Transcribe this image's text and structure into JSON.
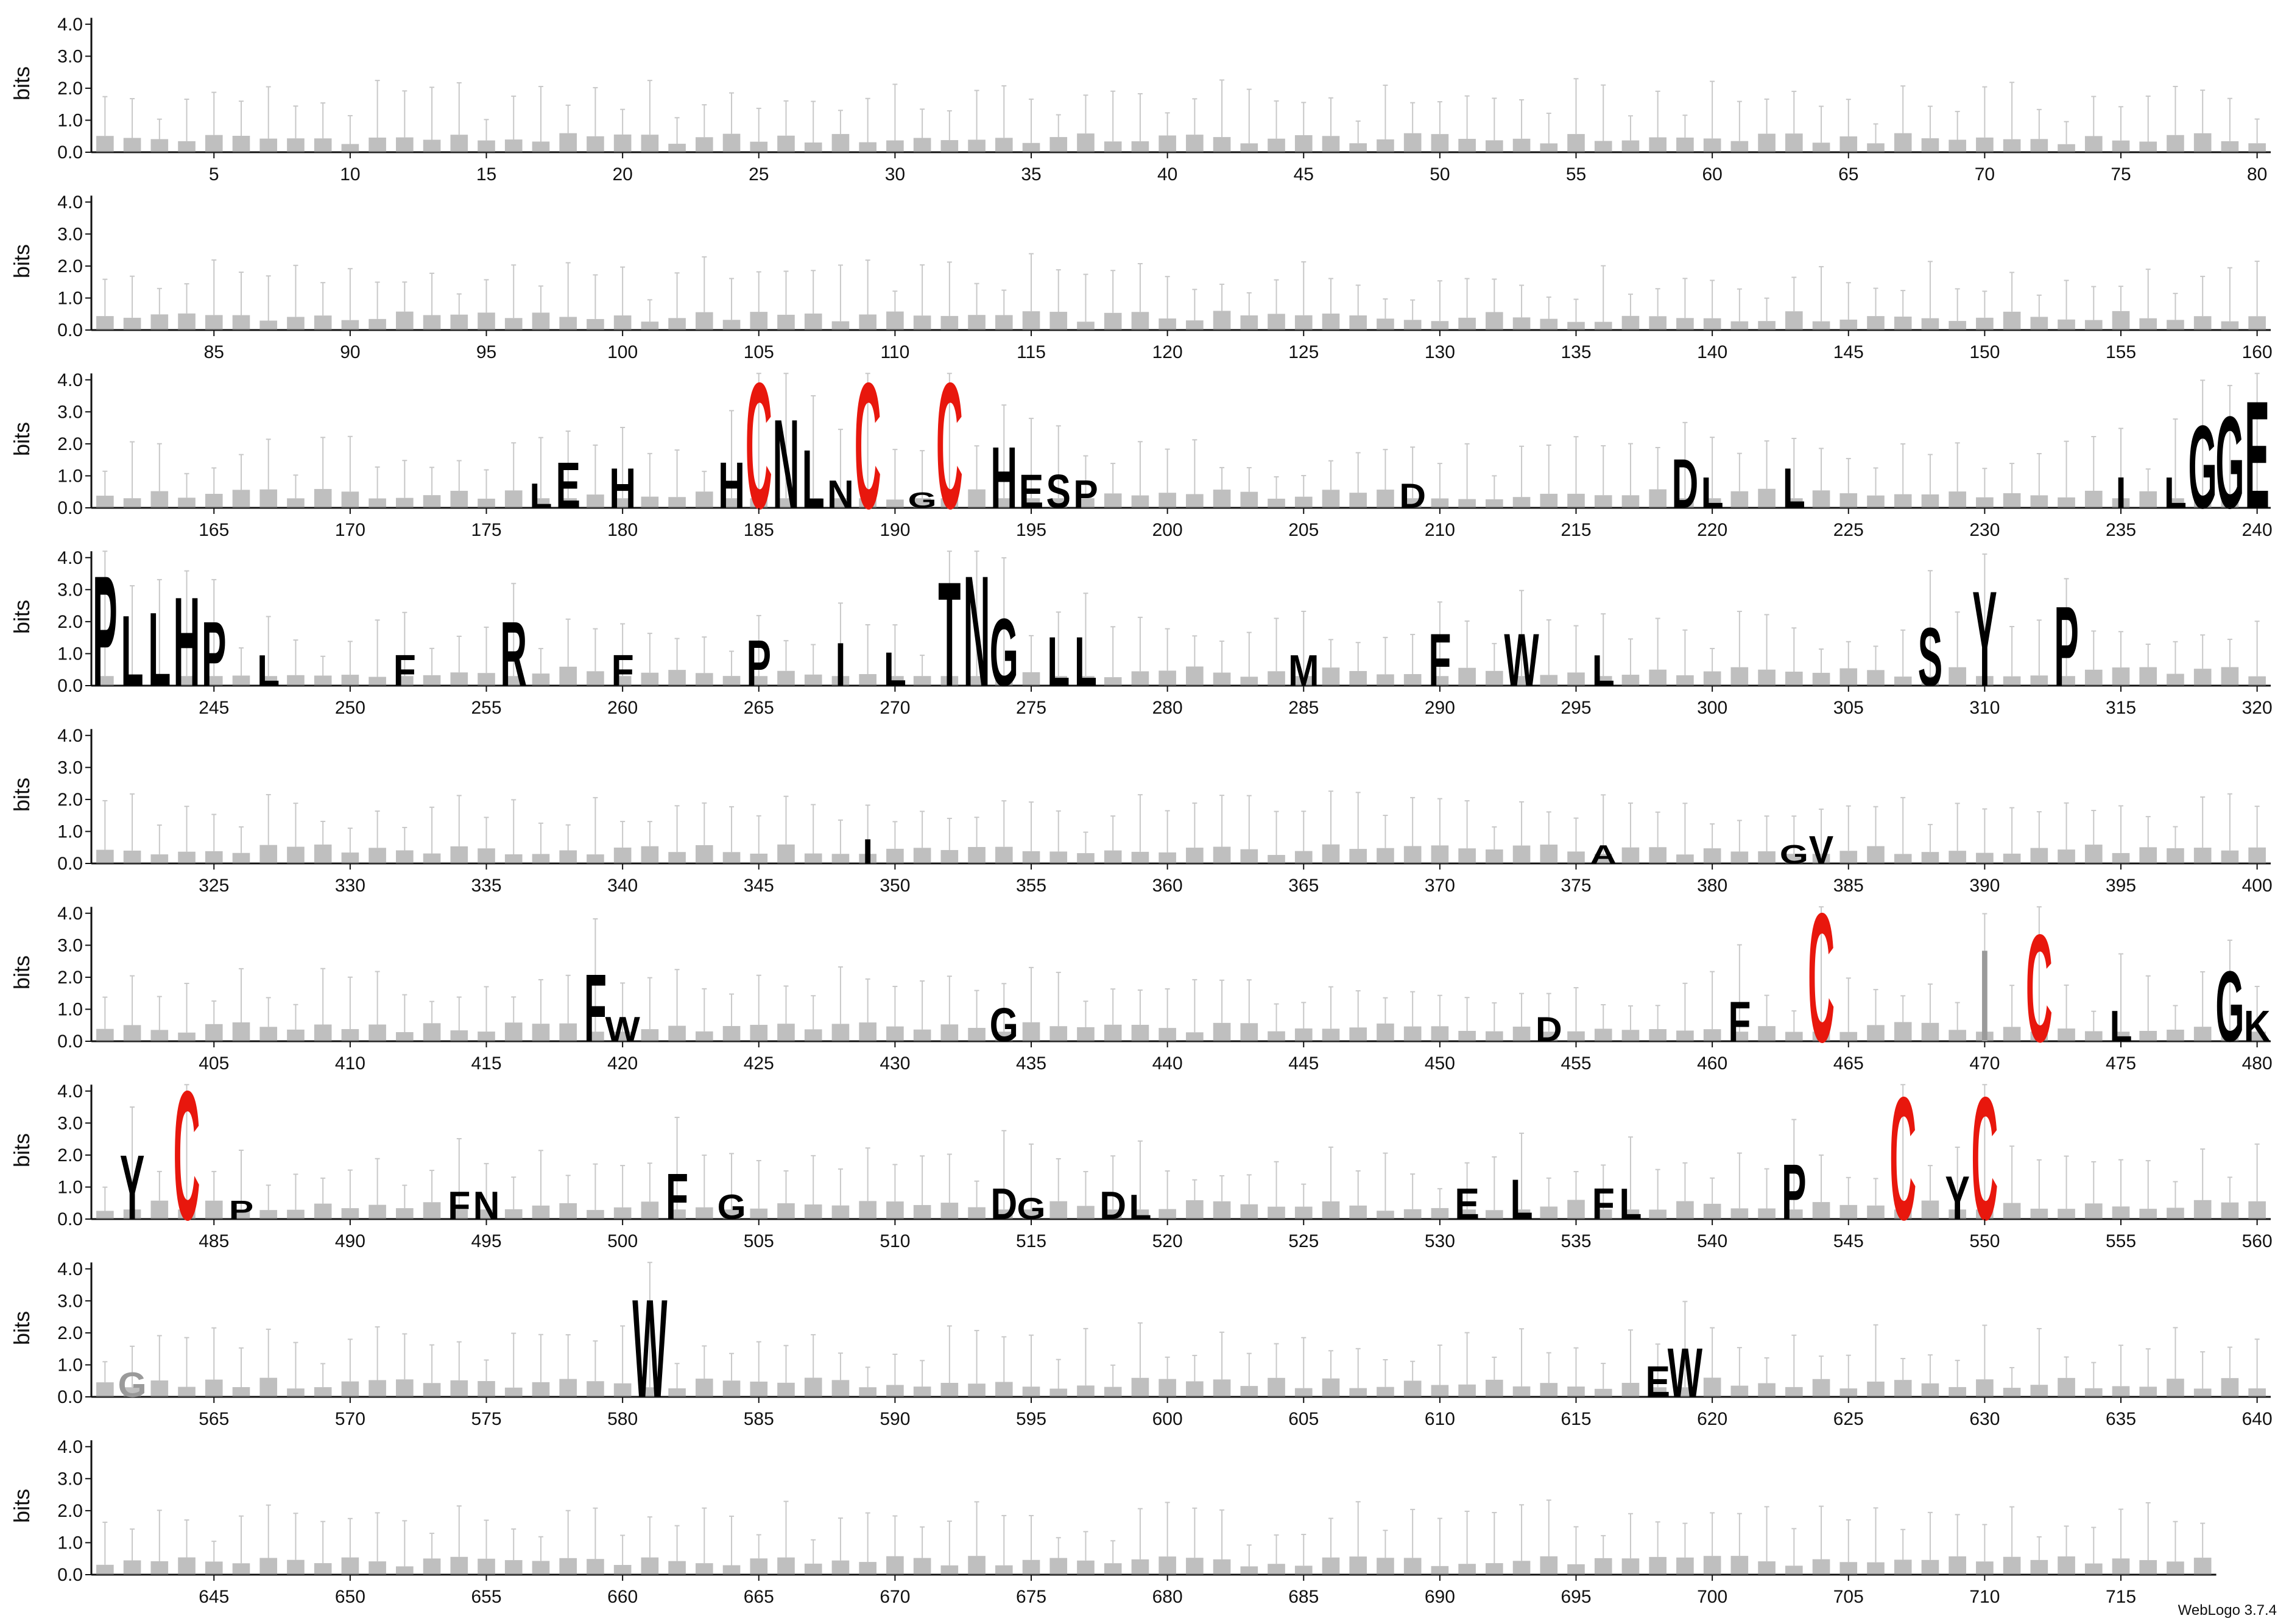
{
  "footer": "WebLogo 3.7.4",
  "colors": {
    "default": "#000000",
    "cys": "#e8170d",
    "faint": "#9a9a9a",
    "errorbar": "#c8c8c8"
  },
  "chart_data": {
    "type": "sequence-logo",
    "ylabel": "bits",
    "ylim": [
      0,
      4.3
    ],
    "yticks": [
      "0.0",
      "1.0",
      "2.0",
      "3.0",
      "4.0"
    ],
    "positions_per_row": 80,
    "rows": [
      {
        "start": 1,
        "end": 80,
        "ticks": [
          5,
          10,
          15,
          20,
          25,
          30,
          35,
          40,
          45,
          50,
          55,
          60,
          65,
          70,
          75,
          80
        ]
      },
      {
        "start": 81,
        "end": 160,
        "ticks": [
          85,
          90,
          95,
          100,
          105,
          110,
          115,
          120,
          125,
          130,
          135,
          140,
          145,
          150,
          155,
          160
        ]
      },
      {
        "start": 161,
        "end": 240,
        "ticks": [
          165,
          170,
          175,
          180,
          185,
          190,
          195,
          200,
          205,
          210,
          215,
          220,
          225,
          230,
          235,
          240
        ]
      },
      {
        "start": 241,
        "end": 320,
        "ticks": [
          245,
          250,
          255,
          260,
          265,
          270,
          275,
          280,
          285,
          290,
          295,
          300,
          305,
          310,
          315,
          320
        ]
      },
      {
        "start": 321,
        "end": 400,
        "ticks": [
          325,
          330,
          335,
          340,
          345,
          350,
          355,
          360,
          365,
          370,
          375,
          380,
          385,
          390,
          395,
          400
        ]
      },
      {
        "start": 401,
        "end": 480,
        "ticks": [
          405,
          410,
          415,
          420,
          425,
          430,
          435,
          440,
          445,
          450,
          455,
          460,
          465,
          470,
          475,
          480
        ]
      },
      {
        "start": 481,
        "end": 560,
        "ticks": [
          485,
          490,
          495,
          500,
          505,
          510,
          515,
          520,
          525,
          530,
          535,
          540,
          545,
          550,
          555,
          560
        ]
      },
      {
        "start": 561,
        "end": 640,
        "ticks": [
          565,
          570,
          575,
          580,
          585,
          590,
          595,
          600,
          605,
          610,
          615,
          620,
          625,
          630,
          635,
          640
        ]
      },
      {
        "start": 641,
        "end": 718,
        "ticks": [
          645,
          650,
          655,
          660,
          665,
          670,
          675,
          680,
          685,
          690,
          695,
          700,
          705,
          710,
          715
        ]
      }
    ],
    "glyphs": [
      {
        "pos": 185,
        "letter": "C",
        "bits": 4.1,
        "color": "cys"
      },
      {
        "pos": 186,
        "letter": "N",
        "bits": 2.9,
        "color": "default"
      },
      {
        "pos": 187,
        "letter": "L",
        "bits": 1.9,
        "color": "default"
      },
      {
        "pos": 188,
        "letter": "N",
        "bits": 0.9,
        "color": "default"
      },
      {
        "pos": 189,
        "letter": "C",
        "bits": 4.1,
        "color": "cys"
      },
      {
        "pos": 191,
        "letter": "G",
        "bits": 0.5,
        "color": "default"
      },
      {
        "pos": 192,
        "letter": "C",
        "bits": 4.1,
        "color": "cys"
      },
      {
        "pos": 194,
        "letter": "H",
        "bits": 2.0,
        "color": "default"
      },
      {
        "pos": 195,
        "letter": "E",
        "bits": 1.1,
        "color": "default"
      },
      {
        "pos": 196,
        "letter": "S",
        "bits": 1.1,
        "color": "default"
      },
      {
        "pos": 197,
        "letter": "P",
        "bits": 0.9,
        "color": "default"
      },
      {
        "pos": 177,
        "letter": "L",
        "bits": 0.8,
        "color": "default"
      },
      {
        "pos": 178,
        "letter": "E",
        "bits": 1.5,
        "color": "default"
      },
      {
        "pos": 180,
        "letter": "H",
        "bits": 1.3,
        "color": "default"
      },
      {
        "pos": 184,
        "letter": "H",
        "bits": 1.5,
        "color": "default"
      },
      {
        "pos": 209,
        "letter": "D",
        "bits": 0.8,
        "color": "default"
      },
      {
        "pos": 219,
        "letter": "D",
        "bits": 1.6,
        "color": "default"
      },
      {
        "pos": 220,
        "letter": "L",
        "bits": 1.0,
        "color": "default"
      },
      {
        "pos": 223,
        "letter": "L",
        "bits": 1.3,
        "color": "default"
      },
      {
        "pos": 235,
        "letter": "I",
        "bits": 1.0,
        "color": "default"
      },
      {
        "pos": 237,
        "letter": "L",
        "bits": 1.0,
        "color": "default"
      },
      {
        "pos": 238,
        "letter": "G",
        "bits": 2.7,
        "color": "default"
      },
      {
        "pos": 239,
        "letter": "G",
        "bits": 3.0,
        "color": "default"
      },
      {
        "pos": 240,
        "letter": "E",
        "bits": 3.5,
        "color": "default"
      },
      {
        "pos": 241,
        "letter": "P",
        "bits": 3.6,
        "color": "default"
      },
      {
        "pos": 242,
        "letter": "L",
        "bits": 2.3,
        "color": "default"
      },
      {
        "pos": 243,
        "letter": "L",
        "bits": 2.4,
        "color": "default"
      },
      {
        "pos": 244,
        "letter": "H",
        "bits": 2.9,
        "color": "default"
      },
      {
        "pos": 245,
        "letter": "P",
        "bits": 2.1,
        "color": "default"
      },
      {
        "pos": 247,
        "letter": "L",
        "bits": 1.0,
        "color": "default"
      },
      {
        "pos": 252,
        "letter": "F",
        "bits": 1.0,
        "color": "default"
      },
      {
        "pos": 256,
        "letter": "R",
        "bits": 2.1,
        "color": "default"
      },
      {
        "pos": 260,
        "letter": "F",
        "bits": 1.0,
        "color": "default"
      },
      {
        "pos": 265,
        "letter": "P",
        "bits": 1.5,
        "color": "default"
      },
      {
        "pos": 268,
        "letter": "I",
        "bits": 1.4,
        "color": "default"
      },
      {
        "pos": 270,
        "letter": "L",
        "bits": 1.1,
        "color": "default"
      },
      {
        "pos": 272,
        "letter": "T",
        "bits": 3.4,
        "color": "default"
      },
      {
        "pos": 273,
        "letter": "N",
        "bits": 3.6,
        "color": "default"
      },
      {
        "pos": 274,
        "letter": "G",
        "bits": 2.2,
        "color": "default"
      },
      {
        "pos": 276,
        "letter": "L",
        "bits": 1.6,
        "color": "default"
      },
      {
        "pos": 277,
        "letter": "L",
        "bits": 1.6,
        "color": "default"
      },
      {
        "pos": 285,
        "letter": "M",
        "bits": 1.0,
        "color": "default"
      },
      {
        "pos": 290,
        "letter": "F",
        "bits": 1.7,
        "color": "default"
      },
      {
        "pos": 293,
        "letter": "W",
        "bits": 1.7,
        "color": "default"
      },
      {
        "pos": 296,
        "letter": "L",
        "bits": 1.0,
        "color": "default"
      },
      {
        "pos": 308,
        "letter": "S",
        "bits": 1.9,
        "color": "default"
      },
      {
        "pos": 310,
        "letter": "Y",
        "bits": 3.1,
        "color": "default"
      },
      {
        "pos": 313,
        "letter": "P",
        "bits": 2.6,
        "color": "default"
      },
      {
        "pos": 349,
        "letter": "I",
        "bits": 0.8,
        "color": "default"
      },
      {
        "pos": 376,
        "letter": "A",
        "bits": 0.6,
        "color": "default"
      },
      {
        "pos": 383,
        "letter": "G",
        "bits": 0.6,
        "color": "default"
      },
      {
        "pos": 384,
        "letter": "V",
        "bits": 0.9,
        "color": "default"
      },
      {
        "pos": 419,
        "letter": "F",
        "bits": 2.2,
        "color": "default"
      },
      {
        "pos": 420,
        "letter": "W",
        "bits": 0.8,
        "color": "default"
      },
      {
        "pos": 434,
        "letter": "G",
        "bits": 1.1,
        "color": "default"
      },
      {
        "pos": 454,
        "letter": "D",
        "bits": 0.8,
        "color": "default"
      },
      {
        "pos": 461,
        "letter": "F",
        "bits": 1.3,
        "color": "default"
      },
      {
        "pos": 464,
        "letter": "C",
        "bits": 4.2,
        "color": "cys"
      },
      {
        "pos": 470,
        "letter": "I",
        "bits": 3.0,
        "color": "faint"
      },
      {
        "pos": 472,
        "letter": "C",
        "bits": 3.5,
        "color": "cys"
      },
      {
        "pos": 475,
        "letter": "L",
        "bits": 1.0,
        "color": "default"
      },
      {
        "pos": 479,
        "letter": "G",
        "bits": 2.3,
        "color": "default"
      },
      {
        "pos": 480,
        "letter": "K",
        "bits": 1.0,
        "color": "default"
      },
      {
        "pos": 482,
        "letter": "Y",
        "bits": 2.1,
        "color": "default"
      },
      {
        "pos": 484,
        "letter": "C",
        "bits": 4.2,
        "color": "cys"
      },
      {
        "pos": 486,
        "letter": "P",
        "bits": 0.6,
        "color": "default"
      },
      {
        "pos": 494,
        "letter": "F",
        "bits": 0.9,
        "color": "default"
      },
      {
        "pos": 495,
        "letter": "N",
        "bits": 0.9,
        "color": "default"
      },
      {
        "pos": 502,
        "letter": "F",
        "bits": 1.5,
        "color": "default"
      },
      {
        "pos": 504,
        "letter": "G",
        "bits": 0.8,
        "color": "default"
      },
      {
        "pos": 514,
        "letter": "D",
        "bits": 1.0,
        "color": "default"
      },
      {
        "pos": 515,
        "letter": "G",
        "bits": 0.7,
        "color": "default"
      },
      {
        "pos": 518,
        "letter": "D",
        "bits": 0.9,
        "color": "default"
      },
      {
        "pos": 519,
        "letter": "L",
        "bits": 0.8,
        "color": "default"
      },
      {
        "pos": 531,
        "letter": "E",
        "bits": 1.0,
        "color": "default"
      },
      {
        "pos": 533,
        "letter": "L",
        "bits": 1.3,
        "color": "default"
      },
      {
        "pos": 536,
        "letter": "F",
        "bits": 1.0,
        "color": "default"
      },
      {
        "pos": 537,
        "letter": "L",
        "bits": 1.0,
        "color": "default"
      },
      {
        "pos": 543,
        "letter": "P",
        "bits": 1.8,
        "color": "default"
      },
      {
        "pos": 547,
        "letter": "C",
        "bits": 4.0,
        "color": "cys"
      },
      {
        "pos": 549,
        "letter": "Y",
        "bits": 1.4,
        "color": "default"
      },
      {
        "pos": 550,
        "letter": "C",
        "bits": 4.0,
        "color": "cys"
      },
      {
        "pos": 562,
        "letter": "G",
        "bits": 0.8,
        "color": "faint"
      },
      {
        "pos": 581,
        "letter": "W",
        "bits": 3.2,
        "color": "default"
      },
      {
        "pos": 618,
        "letter": "E",
        "bits": 1.0,
        "color": "default"
      },
      {
        "pos": 619,
        "letter": "W",
        "bits": 1.6,
        "color": "default"
      }
    ]
  }
}
